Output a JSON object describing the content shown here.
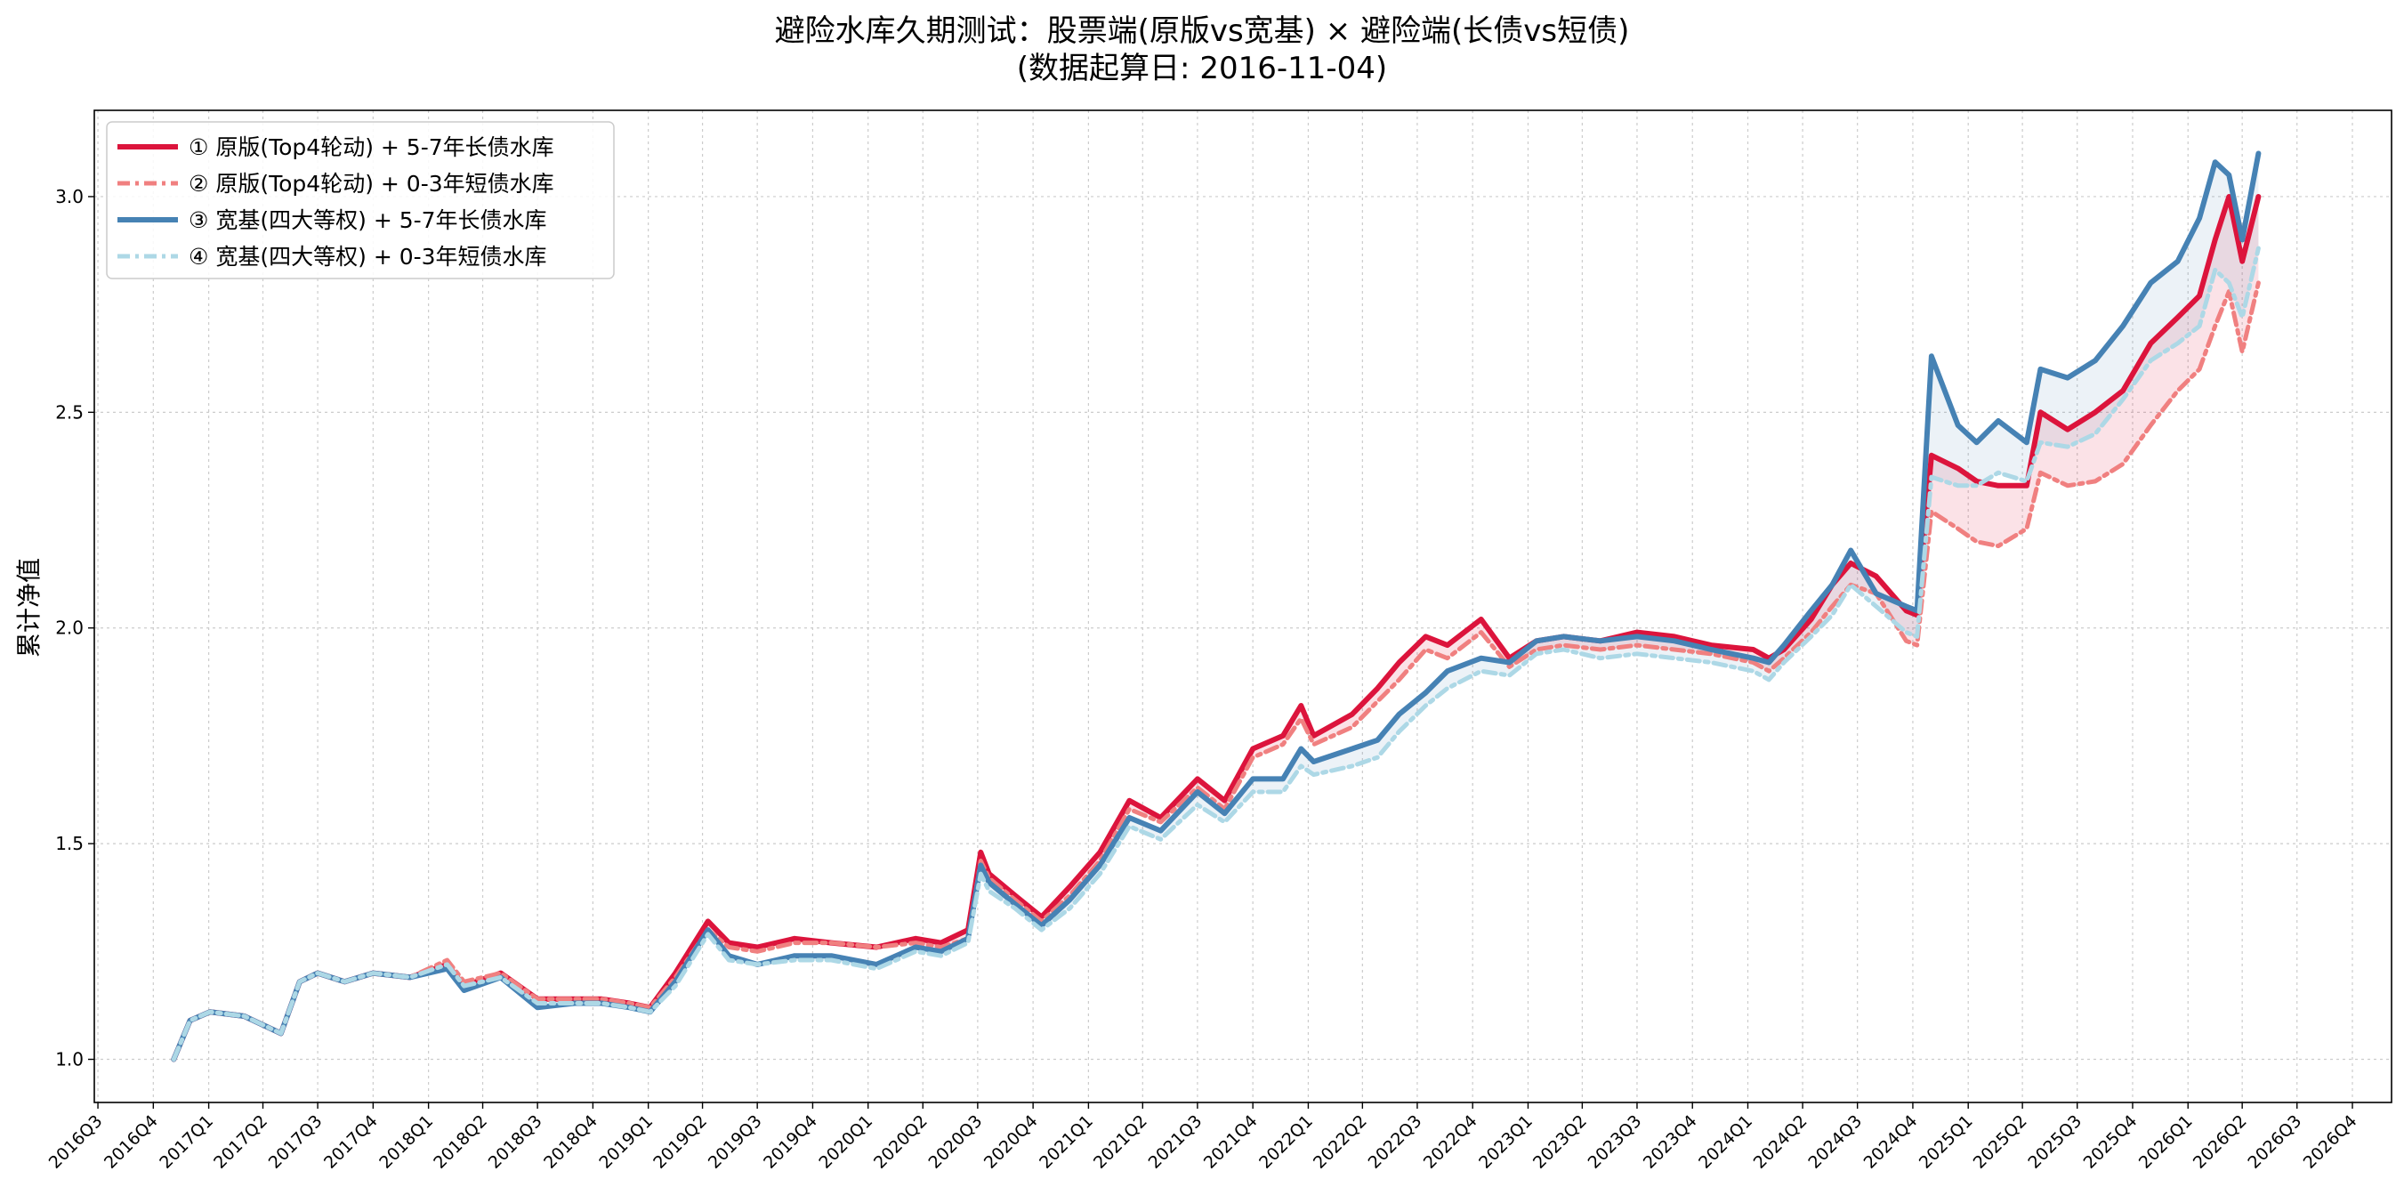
{
  "chart_data": {
    "type": "line",
    "title": "避险水库久期测试：股票端(原版vs宽基) × 避险端(长债vs短债)",
    "subtitle": "(数据起算日: 2016-11-04)",
    "xlabel": "",
    "ylabel": "累计净值",
    "ylim": [
      0.9,
      3.2
    ],
    "yticks": [
      "1.0",
      "1.5",
      "2.0",
      "2.5",
      "3.0"
    ],
    "xticks": [
      "2016Q3",
      "2016Q4",
      "2017Q1",
      "2017Q2",
      "2017Q3",
      "2017Q4",
      "2018Q1",
      "2018Q2",
      "2018Q3",
      "2018Q4",
      "2019Q1",
      "2019Q2",
      "2019Q3",
      "2019Q4",
      "2020Q1",
      "2020Q2",
      "2020Q3",
      "2020Q4",
      "2021Q1",
      "2021Q2",
      "2021Q3",
      "2021Q4",
      "2022Q1",
      "2022Q2",
      "2022Q3",
      "2022Q4",
      "2023Q1",
      "2023Q2",
      "2023Q3",
      "2023Q4",
      "2024Q1",
      "2024Q2",
      "2024Q3",
      "2024Q4",
      "2025Q1",
      "2025Q2",
      "2025Q3",
      "2025Q4",
      "2026Q1",
      "2026Q2",
      "2026Q3",
      "2026Q4"
    ],
    "grid": true,
    "legend_position": "top-left",
    "x_start": "2016-11-04",
    "x": [
      "2016-11-04",
      "2016-12-01",
      "2017-01-03",
      "2017-03-01",
      "2017-05-01",
      "2017-06-01",
      "2017-07-01",
      "2017-08-15",
      "2017-10-01",
      "2017-12-01",
      "2018-02-01",
      "2018-03-01",
      "2018-05-01",
      "2018-07-01",
      "2018-09-01",
      "2018-10-15",
      "2018-12-01",
      "2019-01-04",
      "2019-02-15",
      "2019-04-10",
      "2019-05-15",
      "2019-07-01",
      "2019-09-01",
      "2019-11-01",
      "2020-01-15",
      "2020-03-20",
      "2020-05-01",
      "2020-06-15",
      "2020-07-06",
      "2020-07-20",
      "2020-09-01",
      "2020-10-15",
      "2020-12-01",
      "2021-01-20",
      "2021-03-10",
      "2021-05-01",
      "2021-07-01",
      "2021-08-15",
      "2021-10-01",
      "2021-11-20",
      "2021-12-20",
      "2022-01-10",
      "2022-03-15",
      "2022-04-26",
      "2022-06-01",
      "2022-07-15",
      "2022-08-20",
      "2022-10-15",
      "2022-12-01",
      "2023-01-15",
      "2023-03-01",
      "2023-05-01",
      "2023-07-01",
      "2023-09-01",
      "2023-11-01",
      "2024-01-10",
      "2024-02-05",
      "2024-03-01",
      "2024-04-15",
      "2024-05-20",
      "2024-06-20",
      "2024-08-01",
      "2024-09-20",
      "2024-10-08",
      "2024-11-01",
      "2024-12-15",
      "2025-01-15",
      "2025-02-20",
      "2025-04-08",
      "2025-05-01",
      "2025-06-15",
      "2025-07-31",
      "2025-09-15",
      "2025-10-31",
      "2025-12-15",
      "2026-01-20",
      "2026-02-15",
      "2026-03-10",
      "2026-04-01",
      "2026-04-28"
    ],
    "series": [
      {
        "name": "① 原版(Top4轮动) + 5-7年长债水库",
        "color": "#dc143c",
        "dash": "solid",
        "width": 6,
        "values": [
          1.0,
          1.09,
          1.11,
          1.1,
          1.06,
          1.18,
          1.2,
          1.18,
          1.2,
          1.19,
          1.22,
          1.17,
          1.2,
          1.14,
          1.14,
          1.14,
          1.13,
          1.12,
          1.2,
          1.32,
          1.27,
          1.26,
          1.28,
          1.27,
          1.26,
          1.28,
          1.27,
          1.3,
          1.48,
          1.43,
          1.38,
          1.33,
          1.4,
          1.48,
          1.6,
          1.56,
          1.65,
          1.6,
          1.72,
          1.75,
          1.82,
          1.75,
          1.8,
          1.86,
          1.92,
          1.98,
          1.96,
          2.02,
          1.93,
          1.97,
          1.98,
          1.97,
          1.99,
          1.98,
          1.96,
          1.95,
          1.93,
          1.95,
          2.02,
          2.1,
          2.15,
          2.12,
          2.04,
          2.03,
          2.4,
          2.37,
          2.34,
          2.33,
          2.33,
          2.5,
          2.46,
          2.5,
          2.55,
          2.66,
          2.72,
          2.77,
          2.9,
          3.0,
          2.85,
          3.0
        ]
      },
      {
        "name": "② 原版(Top4轮动) + 0-3年短债水库",
        "color": "#f08080",
        "dash": "14,6,4,6",
        "width": 5,
        "values": [
          1.0,
          1.09,
          1.11,
          1.1,
          1.06,
          1.18,
          1.2,
          1.18,
          1.2,
          1.19,
          1.23,
          1.18,
          1.2,
          1.14,
          1.14,
          1.14,
          1.13,
          1.12,
          1.19,
          1.3,
          1.26,
          1.25,
          1.27,
          1.27,
          1.26,
          1.27,
          1.26,
          1.28,
          1.46,
          1.42,
          1.37,
          1.32,
          1.38,
          1.46,
          1.58,
          1.55,
          1.63,
          1.58,
          1.7,
          1.73,
          1.79,
          1.73,
          1.77,
          1.83,
          1.88,
          1.95,
          1.93,
          1.99,
          1.91,
          1.95,
          1.96,
          1.95,
          1.96,
          1.95,
          1.94,
          1.92,
          1.9,
          1.93,
          1.99,
          2.05,
          2.1,
          2.08,
          1.97,
          1.96,
          2.27,
          2.23,
          2.2,
          2.19,
          2.23,
          2.36,
          2.33,
          2.34,
          2.38,
          2.47,
          2.55,
          2.6,
          2.7,
          2.78,
          2.64,
          2.8
        ]
      },
      {
        "name": "③ 宽基(四大等权) + 5-7年长债水库",
        "color": "#4682b4",
        "dash": "solid",
        "width": 6,
        "values": [
          1.0,
          1.09,
          1.11,
          1.1,
          1.06,
          1.18,
          1.2,
          1.18,
          1.2,
          1.19,
          1.21,
          1.16,
          1.19,
          1.12,
          1.13,
          1.13,
          1.12,
          1.11,
          1.18,
          1.3,
          1.24,
          1.22,
          1.24,
          1.24,
          1.22,
          1.26,
          1.25,
          1.28,
          1.45,
          1.41,
          1.36,
          1.31,
          1.37,
          1.45,
          1.56,
          1.53,
          1.62,
          1.57,
          1.65,
          1.65,
          1.72,
          1.69,
          1.72,
          1.74,
          1.8,
          1.85,
          1.9,
          1.93,
          1.92,
          1.97,
          1.98,
          1.97,
          1.98,
          1.97,
          1.95,
          1.93,
          1.92,
          1.96,
          2.04,
          2.1,
          2.18,
          2.08,
          2.05,
          2.04,
          2.63,
          2.47,
          2.43,
          2.48,
          2.43,
          2.6,
          2.58,
          2.62,
          2.7,
          2.8,
          2.85,
          2.95,
          3.08,
          3.05,
          2.9,
          3.1
        ]
      },
      {
        "name": "④ 宽基(四大等权) + 0-3年短债水库",
        "color": "#add8e6",
        "dash": "14,6,4,6",
        "width": 5,
        "values": [
          1.0,
          1.09,
          1.11,
          1.1,
          1.06,
          1.18,
          1.2,
          1.18,
          1.2,
          1.19,
          1.22,
          1.17,
          1.19,
          1.13,
          1.13,
          1.13,
          1.12,
          1.11,
          1.17,
          1.29,
          1.23,
          1.22,
          1.23,
          1.23,
          1.21,
          1.25,
          1.24,
          1.27,
          1.43,
          1.39,
          1.35,
          1.3,
          1.35,
          1.43,
          1.54,
          1.51,
          1.59,
          1.55,
          1.62,
          1.62,
          1.68,
          1.66,
          1.68,
          1.7,
          1.76,
          1.82,
          1.86,
          1.9,
          1.89,
          1.94,
          1.95,
          1.93,
          1.94,
          1.93,
          1.92,
          1.9,
          1.88,
          1.92,
          1.98,
          2.03,
          2.1,
          2.05,
          1.99,
          1.98,
          2.35,
          2.33,
          2.33,
          2.36,
          2.34,
          2.43,
          2.42,
          2.45,
          2.53,
          2.62,
          2.66,
          2.7,
          2.83,
          2.8,
          2.72,
          2.88
        ]
      }
    ],
    "shaded_bands": [
      {
        "between": [
          0,
          1
        ],
        "color": "#dc143c",
        "opacity": 0.12
      },
      {
        "between": [
          2,
          3
        ],
        "color": "#4682b4",
        "opacity": 0.1
      }
    ]
  }
}
